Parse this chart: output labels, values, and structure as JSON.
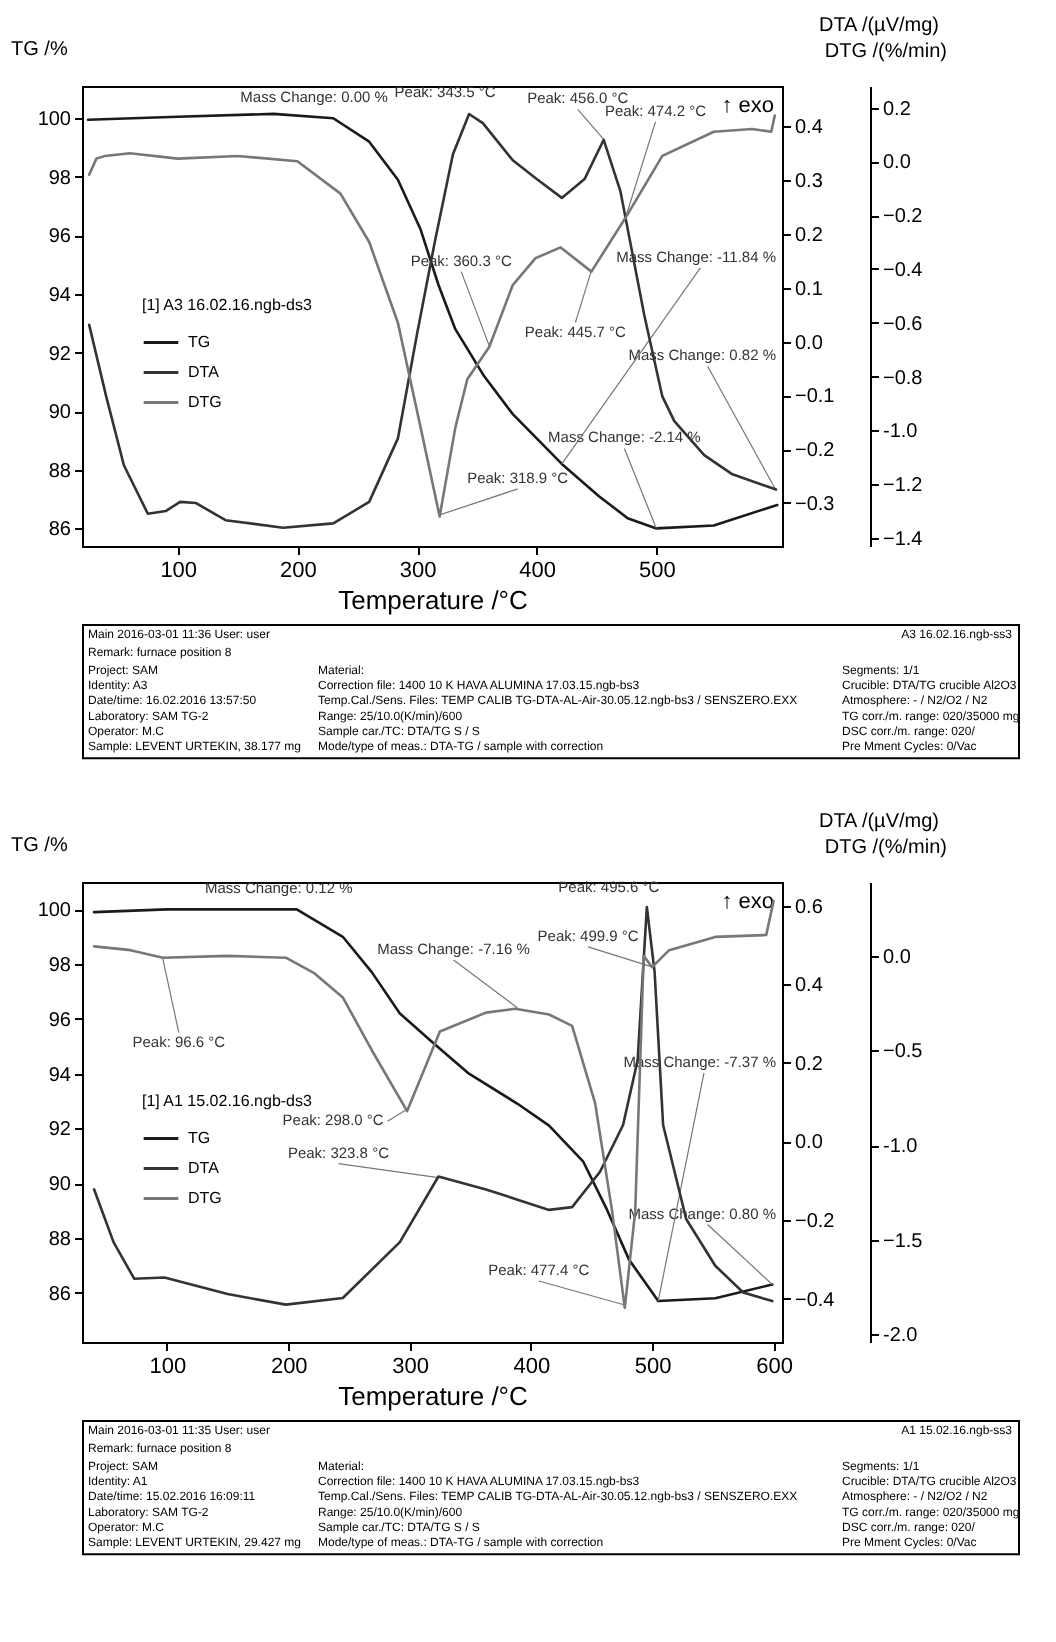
{
  "chart_data": [
    {
      "type": "line",
      "xlabel": "Temperature /°C",
      "ylabel": "TG /%",
      "y2label": "DTA /(µV/mg)",
      "y3label": "DTG /(%/min)",
      "legend_title": "[1] A3 16.02.16.ngb-ds3",
      "legend": "left",
      "xlim": [
        20,
        605
      ],
      "xticks": [
        100,
        200,
        300,
        400,
        500
      ],
      "ylim": [
        85.4,
        101.1
      ],
      "yticks": [
        86,
        88,
        90,
        92,
        94,
        96,
        98,
        100
      ],
      "y2lim": [
        -0.38,
        0.475
      ],
      "y2ticks": [
        -0.3,
        -0.2,
        -0.1,
        {
          "value": 0,
          "label": "0.0"
        },
        0.1,
        0.2,
        0.3,
        0.4
      ],
      "y3lim": [
        -1.43,
        0.28
      ],
      "y3ticks": [
        -1.4,
        -1.2,
        {
          "value": -1,
          "label": "-1.0"
        },
        -0.8,
        -0.6,
        -0.4,
        -0.2,
        {
          "value": 0,
          "label": "0.0"
        },
        0.2
      ],
      "series": [
        {
          "name": "TG",
          "color": "#1a1a1a",
          "x": [
            25,
            100,
            180,
            230,
            260,
            284,
            303,
            318,
            332,
            356,
            380,
            421,
            452,
            476,
            500,
            548,
            601
          ],
          "values": [
            99.95,
            100.05,
            100.15,
            100.0,
            99.2,
            97.9,
            96.2,
            94.3,
            92.8,
            91.2,
            89.9,
            88.2,
            87.1,
            86.35,
            86.0,
            86.1,
            86.8
          ]
        },
        {
          "name": "DTA",
          "color": "#333333",
          "axis": "y2",
          "x": [
            26,
            40,
            55,
            75,
            90,
            102,
            115,
            140,
            188,
            230,
            260,
            284,
            300,
            315,
            330,
            343.5,
            355,
            380,
            400,
            421,
            440,
            456,
            470,
            490,
            505,
            515,
            540,
            563,
            600
          ],
          "values": [
            0.031,
            -0.1,
            -0.23,
            -0.32,
            -0.315,
            -0.298,
            -0.3,
            -0.332,
            -0.346,
            -0.338,
            -0.298,
            -0.18,
            0.014,
            0.187,
            0.348,
            0.423,
            0.406,
            0.337,
            0.302,
            0.267,
            0.302,
            0.375,
            0.279,
            0.048,
            -0.102,
            -0.148,
            -0.211,
            -0.246,
            -0.275
          ]
        },
        {
          "name": "DTG",
          "color": "#777777",
          "axis": "y3",
          "x": [
            26,
            32,
            39,
            60,
            100,
            150,
            200,
            236,
            260,
            284,
            303,
            318.9,
            332,
            342,
            360.3,
            380,
            399,
            420,
            445.7,
            474.2,
            505,
            548,
            580,
            596,
            599
          ],
          "values": [
            -0.05,
            0.01,
            0.02,
            0.03,
            0.01,
            0.02,
            0.0,
            -0.12,
            -0.3,
            -0.6,
            -0.99,
            -1.32,
            -0.99,
            -0.81,
            -0.69,
            -0.46,
            -0.36,
            -0.32,
            -0.41,
            -0.21,
            0.02,
            0.11,
            0.12,
            0.11,
            0.17
          ]
        }
      ],
      "annotations": [
        {
          "text": "Mass Change: 0.00 %",
          "x": 229,
          "y": 100
        },
        {
          "text": "Peak: 343.5 °C",
          "x": 343.5,
          "y": 100.17
        },
        {
          "text": "Peak: 456.0 °C",
          "x": 456,
          "y": 99.28
        },
        {
          "text": "Peak: 474.2 °C",
          "x": 474.2,
          "y": 96.6
        },
        {
          "text": "Peak: 360.3 °C",
          "x": 360.3,
          "y": 92.24
        },
        {
          "text": "Mass Change: -11.84 %",
          "x": 421,
          "y": 88.2
        },
        {
          "text": "Peak: 445.7 °C",
          "x": 445.7,
          "y": 94.8
        },
        {
          "text": "Mass Change: 0.82 %",
          "x": 600,
          "y": 87.3
        },
        {
          "text": "Mass Change: -2.14 %",
          "x": 500,
          "y": 86.0
        },
        {
          "text": "Peak: 318.9 °C",
          "x": 318.9,
          "y": 86.46
        },
        "↑ exo",
        "Main 2016-03-01 11:36 User: user",
        "A3 16.02.16.ngb-ss3",
        "Remark: furnace position 8",
        "Project: SAM",
        "Identity: A3",
        "Date/time: 16.02.2016 13:57:50",
        "Laboratory: SAM TG-2",
        "Operator: M.C",
        "Sample: LEVENT URTEKIN, 38.177 mg",
        "Material:",
        "Correction file: 1400 10 K HAVA ALUMINA 17.03.15.ngb-bs3",
        "Temp.Cal./Sens. Files: TEMP CALIB TG-DTA-AL-Air-30.05.12.ngb-bs3 / SENSZERO.EXX",
        "Range: 25/10.0(K/min)/600",
        "Sample car./TC: DTA/TG S / S",
        "Mode/type of meas.: DTA-TG / sample with correction",
        "Segments: 1/1",
        "Crucible: DTA/TG crucible Al2O3",
        "Atmosphere: - / N2/O2 / N2",
        "TG corr./m. range: 020/35000 mg",
        "DSC corr./m. range: 020/",
        "Pre Mment Cycles: 0/Vac"
      ]
    },
    {
      "type": "line",
      "xlabel": "Temperature /°C",
      "ylabel": "TG /%",
      "y2label": "DTA /(µV/mg)",
      "y3label": "DTG /(%/min)",
      "legend_title": "[1] A1 15.02.16.ngb-ds3",
      "legend": "left",
      "xlim": [
        30,
        607
      ],
      "xticks": [
        100,
        200,
        300,
        400,
        500,
        600
      ],
      "ylim": [
        84.2,
        101
      ],
      "yticks": [
        86,
        88,
        90,
        92,
        94,
        96,
        98,
        100
      ],
      "y2lim": [
        -0.51,
        0.66
      ],
      "y2ticks": [
        -0.4,
        -0.2,
        {
          "value": 0,
          "label": "0.0"
        },
        0.2,
        0.4,
        0.6
      ],
      "y3lim": [
        -2.04,
        0.39
      ],
      "y3ticks": [
        {
          "value": -2,
          "label": "-2.0"
        },
        -1.5,
        {
          "value": -1,
          "label": "-1.0"
        },
        -0.5,
        {
          "value": 0,
          "label": "0.0"
        }
      ],
      "series": [
        {
          "name": "TG",
          "color": "#1a1a1a",
          "x": [
            40,
            100,
            207,
            245,
            269,
            292,
            320,
            349,
            389,
            415,
            443,
            462,
            481,
            505,
            552,
            599
          ],
          "values": [
            99.9,
            100.0,
            100.0,
            99.0,
            97.7,
            96.2,
            95.1,
            94.0,
            92.9,
            92.1,
            90.8,
            89.1,
            87.2,
            85.7,
            85.8,
            86.3
          ]
        },
        {
          "name": "DTA",
          "color": "#333333",
          "axis": "y2",
          "x": [
            40,
            56,
            73,
            98,
            150,
            198,
            245,
            292,
            323.8,
            363,
            415,
            434,
            457,
            476,
            488,
            495.6,
            502,
            509,
            528,
            552,
            575,
            599
          ],
          "values": [
            -0.122,
            -0.256,
            -0.349,
            -0.346,
            -0.388,
            -0.415,
            -0.398,
            -0.256,
            -0.089,
            -0.122,
            -0.174,
            -0.167,
            -0.077,
            0.042,
            0.207,
            0.596,
            0.431,
            0.042,
            -0.197,
            -0.316,
            -0.384,
            -0.406
          ]
        },
        {
          "name": "DTG",
          "color": "#777777",
          "axis": "y3",
          "x": [
            40,
            70,
            96.6,
            150,
            198,
            221,
            245,
            269,
            298,
            325,
            363,
            387,
            415,
            434,
            453,
            467,
            477.4,
            486,
            493,
            499.9,
            514,
            552,
            594,
            600
          ],
          "values": [
            0.05,
            0.03,
            -0.01,
            0.0,
            -0.01,
            -0.09,
            -0.22,
            -0.5,
            -0.82,
            -0.4,
            -0.3,
            -0.28,
            -0.31,
            -0.37,
            -0.78,
            -1.35,
            -1.86,
            -1.35,
            0.0,
            -0.06,
            0.03,
            0.1,
            0.11,
            0.29
          ]
        }
      ],
      "annotations": [
        {
          "text": "Mass Change: 0.12 %",
          "x": 207,
          "y": 100
        },
        {
          "text": "Peak: 495.6 °C",
          "x": 495.6,
          "y": 100.04
        },
        {
          "text": "Peak: 499.9 °C",
          "x": 499.9,
          "y": 97.9
        },
        {
          "text": "Mass Change: -7.16 %",
          "x": 389,
          "y": 96.4
        },
        {
          "text": "Peak: 96.6 °C",
          "x": 96.6,
          "y": 98.2
        },
        {
          "text": "Mass Change: -7.37 %",
          "x": 505,
          "y": 85.7
        },
        {
          "text": "Peak: 298.0 °C",
          "x": 298,
          "y": 92.7
        },
        {
          "text": "Peak: 323.8 °C",
          "x": 323.8,
          "y": 90.2
        },
        {
          "text": "Mass Change: 0.80 %",
          "x": 599,
          "y": 86.3
        },
        {
          "text": "Peak: 477.4 °C",
          "x": 477.4,
          "y": 85.55
        },
        "↑ exo",
        "Main 2016-03-01 11:35 User: user",
        "A1 15.02.16.ngb-ss3",
        "Remark: furnace position 8",
        "Project: SAM",
        "Identity: A1",
        "Date/time: 15.02.2016 16:09:11",
        "Laboratory: SAM TG-2",
        "Operator: M.C",
        "Sample: LEVENT URTEKIN, 29.427 mg",
        "Material:",
        "Correction file: 1400 10 K HAVA ALUMINA 17.03.15.ngb-bs3",
        "Temp.Cal./Sens. Files: TEMP CALIB TG-DTA-AL-Air-30.05.12.ngb-bs3 / SENSZERO.EXX",
        "Range: 25/10.0(K/min)/600",
        "Sample car./TC: DTA/TG S / S",
        "Mode/type of meas.: DTA-TG / sample with correction",
        "Segments: 1/1",
        "Crucible: DTA/TG crucible Al2O3",
        "Atmosphere: - / N2/O2 / N2",
        "TG corr./m. range: 020/35000 mg",
        "DSC corr./m. range: 020/",
        "Pre Mment Cycles: 0/Vac"
      ]
    }
  ]
}
